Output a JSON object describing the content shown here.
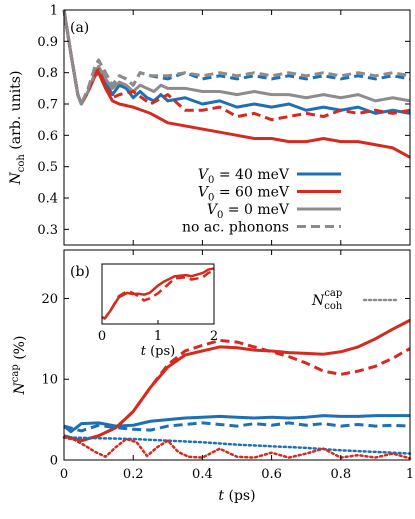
{
  "chart_data": [
    {
      "type": "line",
      "panel_label": "(a)",
      "xlabel": "",
      "ylabel_parts": {
        "main": "N",
        "sub": "coh",
        "rest": " (arb. units)"
      },
      "xlim": [
        0,
        1
      ],
      "ylim": [
        0.25,
        1.0
      ],
      "xticks": [
        0,
        0.2,
        0.4,
        0.6,
        0.8,
        1
      ],
      "xtick_labels": [
        "",
        "",
        "",
        "",
        "",
        ""
      ],
      "yticks": [
        0.3,
        0.4,
        0.5,
        0.6,
        0.7,
        0.8,
        0.9,
        1
      ],
      "ytick_labels": [
        "0.3",
        "0.4",
        "0.5",
        "0.6",
        "0.7",
        "0.8",
        "0.9",
        "1"
      ],
      "series": [
        {
          "name": "V0 = 40 meV",
          "color": "#1f6fb4",
          "dash": "solid",
          "x": [
            0,
            0.02,
            0.04,
            0.05,
            0.07,
            0.09,
            0.1,
            0.12,
            0.14,
            0.16,
            0.18,
            0.2,
            0.22,
            0.24,
            0.26,
            0.28,
            0.3,
            0.35,
            0.4,
            0.45,
            0.5,
            0.55,
            0.6,
            0.65,
            0.7,
            0.75,
            0.8,
            0.85,
            0.9,
            0.95,
            1.0
          ],
          "y": [
            1.0,
            0.86,
            0.73,
            0.7,
            0.74,
            0.8,
            0.81,
            0.77,
            0.73,
            0.76,
            0.75,
            0.72,
            0.74,
            0.72,
            0.71,
            0.73,
            0.71,
            0.72,
            0.7,
            0.71,
            0.69,
            0.7,
            0.69,
            0.7,
            0.68,
            0.69,
            0.68,
            0.69,
            0.67,
            0.68,
            0.67
          ]
        },
        {
          "name": "V0 = 60 meV",
          "color": "#d42a20",
          "dash": "solid",
          "x": [
            0,
            0.02,
            0.04,
            0.05,
            0.07,
            0.09,
            0.1,
            0.12,
            0.14,
            0.16,
            0.2,
            0.25,
            0.3,
            0.35,
            0.4,
            0.45,
            0.5,
            0.55,
            0.6,
            0.65,
            0.7,
            0.75,
            0.8,
            0.85,
            0.9,
            0.95,
            1.0
          ],
          "y": [
            1.0,
            0.86,
            0.73,
            0.7,
            0.74,
            0.79,
            0.8,
            0.75,
            0.71,
            0.7,
            0.69,
            0.67,
            0.64,
            0.63,
            0.62,
            0.61,
            0.6,
            0.59,
            0.59,
            0.58,
            0.58,
            0.59,
            0.58,
            0.58,
            0.57,
            0.56,
            0.53
          ]
        },
        {
          "name": "V0 = 0 meV",
          "color": "#8c8c8c",
          "dash": "solid",
          "x": [
            0,
            0.02,
            0.04,
            0.05,
            0.07,
            0.09,
            0.1,
            0.12,
            0.14,
            0.16,
            0.18,
            0.2,
            0.22,
            0.24,
            0.26,
            0.28,
            0.3,
            0.35,
            0.4,
            0.45,
            0.5,
            0.55,
            0.6,
            0.65,
            0.7,
            0.75,
            0.8,
            0.85,
            0.9,
            0.95,
            1.0
          ],
          "y": [
            1.0,
            0.86,
            0.73,
            0.7,
            0.74,
            0.8,
            0.82,
            0.78,
            0.75,
            0.77,
            0.76,
            0.74,
            0.76,
            0.75,
            0.74,
            0.76,
            0.75,
            0.75,
            0.74,
            0.74,
            0.73,
            0.74,
            0.73,
            0.73,
            0.72,
            0.73,
            0.72,
            0.73,
            0.71,
            0.72,
            0.71
          ]
        },
        {
          "name": "no ac. phonons, V0 = 40 meV",
          "color": "#1f6fb4",
          "dash": "dashed",
          "x": [
            0,
            0.02,
            0.04,
            0.05,
            0.07,
            0.09,
            0.1,
            0.12,
            0.14,
            0.16,
            0.18,
            0.2,
            0.22,
            0.25,
            0.3,
            0.35,
            0.4,
            0.45,
            0.5,
            0.55,
            0.6,
            0.65,
            0.7,
            0.75,
            0.8,
            0.85,
            0.9,
            0.95,
            1.0
          ],
          "y": [
            1.0,
            0.86,
            0.73,
            0.7,
            0.75,
            0.82,
            0.84,
            0.8,
            0.76,
            0.79,
            0.78,
            0.76,
            0.8,
            0.79,
            0.78,
            0.8,
            0.78,
            0.79,
            0.78,
            0.79,
            0.78,
            0.79,
            0.78,
            0.79,
            0.78,
            0.79,
            0.78,
            0.79,
            0.78
          ]
        },
        {
          "name": "no ac. phonons, V0 = 60 meV",
          "color": "#d42a20",
          "dash": "dashed",
          "x": [
            0,
            0.02,
            0.04,
            0.05,
            0.07,
            0.09,
            0.1,
            0.12,
            0.14,
            0.16,
            0.2,
            0.25,
            0.3,
            0.35,
            0.4,
            0.45,
            0.5,
            0.55,
            0.6,
            0.65,
            0.7,
            0.75,
            0.8,
            0.85,
            0.9,
            0.95,
            1.0
          ],
          "y": [
            1.0,
            0.86,
            0.73,
            0.7,
            0.74,
            0.8,
            0.81,
            0.76,
            0.72,
            0.73,
            0.74,
            0.7,
            0.73,
            0.68,
            0.68,
            0.69,
            0.66,
            0.67,
            0.65,
            0.66,
            0.67,
            0.66,
            0.68,
            0.67,
            0.68,
            0.67,
            0.68
          ]
        },
        {
          "name": "no ac. phonons, V0 = 0 meV",
          "color": "#8c8c8c",
          "dash": "dashed",
          "x": [
            0,
            0.02,
            0.04,
            0.05,
            0.07,
            0.09,
            0.1,
            0.12,
            0.14,
            0.16,
            0.18,
            0.2,
            0.22,
            0.25,
            0.3,
            0.35,
            0.4,
            0.45,
            0.5,
            0.55,
            0.6,
            0.65,
            0.7,
            0.75,
            0.8,
            0.85,
            0.9,
            0.95,
            1.0
          ],
          "y": [
            1.0,
            0.86,
            0.73,
            0.7,
            0.75,
            0.82,
            0.84,
            0.8,
            0.76,
            0.79,
            0.78,
            0.76,
            0.8,
            0.79,
            0.79,
            0.8,
            0.79,
            0.8,
            0.79,
            0.8,
            0.79,
            0.8,
            0.79,
            0.8,
            0.79,
            0.8,
            0.79,
            0.8,
            0.79
          ]
        }
      ],
      "legend": {
        "placement": "bottom-center",
        "entries": [
          {
            "prefix": "V",
            "sub": "0",
            "text": " = 40 meV",
            "color": "#1f6fb4",
            "dash": "solid"
          },
          {
            "prefix": "V",
            "sub": "0",
            "text": " = 60 meV",
            "color": "#d42a20",
            "dash": "solid"
          },
          {
            "prefix": "V",
            "sub": "0",
            "text": " = 0 meV",
            "color": "#8c8c8c",
            "dash": "solid"
          },
          {
            "prefix": "",
            "sub": "",
            "text": "no ac. phonons",
            "color": "#8c8c8c",
            "dash": "dashed"
          }
        ]
      }
    },
    {
      "type": "line",
      "panel_label": "(b)",
      "xlabel_parts": {
        "main": "t",
        "rest": " (ps)"
      },
      "ylabel_parts": {
        "main": "N",
        "sup": "cap",
        "rest": " (%)"
      },
      "xlim": [
        0,
        1
      ],
      "ylim": [
        0,
        26
      ],
      "xticks": [
        0,
        0.2,
        0.4,
        0.6,
        0.8,
        1
      ],
      "xtick_labels": [
        "0",
        "0.2",
        "0.4",
        "0.6",
        "0.8",
        "1"
      ],
      "yticks": [
        0,
        10,
        20
      ],
      "ytick_labels": [
        "0",
        "10",
        "20"
      ],
      "series": [
        {
          "name": "V0 = 60 meV",
          "color": "#d42a20",
          "dash": "solid",
          "x": [
            0,
            0.05,
            0.1,
            0.15,
            0.2,
            0.25,
            0.3,
            0.35,
            0.4,
            0.45,
            0.5,
            0.55,
            0.6,
            0.65,
            0.7,
            0.75,
            0.8,
            0.85,
            0.9,
            0.95,
            1.0
          ],
          "y": [
            3.0,
            2.4,
            3.0,
            4.0,
            6.0,
            9.0,
            11.5,
            13.0,
            13.5,
            14.0,
            13.9,
            13.6,
            13.5,
            13.3,
            13.2,
            13.1,
            13.4,
            14.0,
            15.0,
            16.2,
            17.3
          ]
        },
        {
          "name": "V0 = 40 meV",
          "color": "#1f6fb4",
          "dash": "solid",
          "x": [
            0,
            0.02,
            0.05,
            0.1,
            0.15,
            0.2,
            0.25,
            0.3,
            0.35,
            0.4,
            0.45,
            0.5,
            0.55,
            0.6,
            0.65,
            0.7,
            0.75,
            0.8,
            0.85,
            0.9,
            0.95,
            1.0
          ],
          "y": [
            4.2,
            3.5,
            4.5,
            4.6,
            4.2,
            4.3,
            4.8,
            5.0,
            5.2,
            5.3,
            5.4,
            5.3,
            5.2,
            5.3,
            5.2,
            5.3,
            5.5,
            5.4,
            5.4,
            5.5,
            5.5,
            5.5
          ]
        },
        {
          "name": "no ac. phonons, V0 = 60 meV",
          "color": "#d42a20",
          "dash": "dashed",
          "x": [
            0,
            0.05,
            0.1,
            0.15,
            0.2,
            0.25,
            0.3,
            0.35,
            0.4,
            0.45,
            0.5,
            0.55,
            0.6,
            0.65,
            0.7,
            0.75,
            0.8,
            0.85,
            0.9,
            0.95,
            1.0
          ],
          "y": [
            3.0,
            2.4,
            3.0,
            4.0,
            6.0,
            9.0,
            11.8,
            13.5,
            14.2,
            14.8,
            14.6,
            14.0,
            13.4,
            12.8,
            12.0,
            11.0,
            10.6,
            11.0,
            11.6,
            12.6,
            13.8
          ]
        },
        {
          "name": "no ac. phonons, V0 = 40 meV",
          "color": "#1f6fb4",
          "dash": "dashed",
          "x": [
            0,
            0.05,
            0.1,
            0.15,
            0.2,
            0.25,
            0.3,
            0.35,
            0.4,
            0.45,
            0.5,
            0.55,
            0.6,
            0.65,
            0.7,
            0.75,
            0.8,
            0.85,
            0.9,
            0.95,
            1.0
          ],
          "y": [
            4.2,
            3.6,
            4.3,
            4.0,
            3.8,
            3.7,
            4.2,
            4.4,
            4.6,
            4.4,
            4.2,
            4.5,
            4.3,
            4.6,
            4.3,
            4.5,
            4.2,
            4.4,
            4.2,
            4.3,
            4.2
          ]
        },
        {
          "name": "N_coh^cap, V0 = 40 meV",
          "color": "#1f6fb4",
          "dash": "dotted",
          "x": [
            0,
            0.1,
            0.2,
            0.3,
            0.4,
            0.5,
            0.6,
            0.7,
            0.8,
            0.9,
            1.0
          ],
          "y": [
            2.8,
            2.7,
            2.6,
            2.4,
            2.2,
            1.9,
            1.7,
            1.5,
            1.2,
            1.0,
            0.8
          ]
        },
        {
          "name": "N_coh^cap, V0 = 60 meV",
          "color": "#d42a20",
          "dash": "dotted",
          "x": [
            0,
            0.03,
            0.06,
            0.09,
            0.12,
            0.15,
            0.18,
            0.21,
            0.24,
            0.27,
            0.3,
            0.33,
            0.36,
            0.4,
            0.45,
            0.5,
            0.55,
            0.6,
            0.65,
            0.7,
            0.75,
            0.8,
            0.85,
            0.9,
            0.95,
            1.0
          ],
          "y": [
            2.8,
            2.5,
            1.8,
            1.0,
            0.4,
            1.6,
            2.6,
            2.2,
            0.5,
            1.6,
            2.4,
            1.0,
            0.4,
            0.3,
            1.4,
            0.4,
            0.3,
            0.9,
            0.3,
            0.8,
            1.4,
            0.3,
            0.6,
            0.3,
            0.8,
            0.2
          ]
        }
      ],
      "legend": {
        "placement": "upper-right",
        "entries": [
          {
            "main": "N",
            "sub": "coh",
            "sup": "cap",
            "color": "#8c8c8c",
            "dash": "dotted"
          }
        ]
      },
      "inset": {
        "xlabel_parts": {
          "main": "t",
          "rest": " (ps)"
        },
        "xlim": [
          0,
          2
        ],
        "ylim": [
          0,
          27
        ],
        "xticks": [
          0,
          1,
          2
        ],
        "xtick_labels": [
          "0",
          "1",
          "2"
        ],
        "series": [
          {
            "name": "V0 = 60 meV",
            "color": "#d42a20",
            "dash": "solid",
            "x": [
              0,
              0.05,
              0.15,
              0.3,
              0.45,
              0.55,
              0.65,
              0.75,
              0.85,
              1.0,
              1.1,
              1.3,
              1.5,
              1.6,
              1.8,
              1.9,
              2.0
            ],
            "y": [
              3,
              2.5,
              6,
              12,
              14,
              13.5,
              13.6,
              13.2,
              14,
              17.3,
              19,
              21.5,
              22,
              21.5,
              23,
              24.5,
              25
            ]
          },
          {
            "name": "no ac. phonons, V0 = 60 meV",
            "color": "#d42a20",
            "dash": "dashed",
            "x": [
              0,
              0.05,
              0.15,
              0.3,
              0.45,
              0.55,
              0.65,
              0.75,
              0.85,
              1.0,
              1.1,
              1.3,
              1.5,
              1.6,
              1.8,
              1.9,
              2.0
            ],
            "y": [
              3,
              2.5,
              6,
              12.5,
              14.8,
              14,
              12.5,
              10.6,
              11.5,
              13.8,
              16,
              20.5,
              21,
              20,
              21,
              23,
              24
            ]
          }
        ]
      }
    }
  ]
}
